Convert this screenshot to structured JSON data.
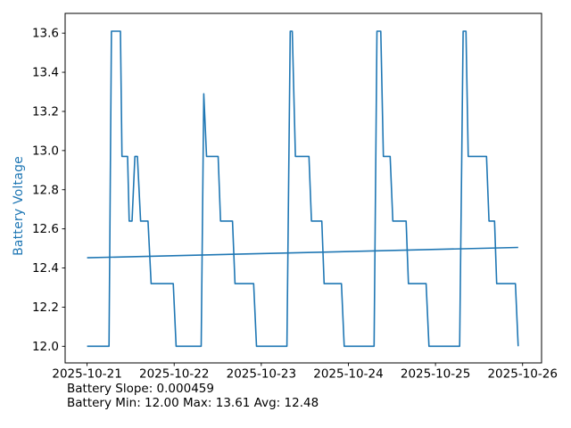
{
  "chart_data": {
    "type": "line",
    "title": "",
    "xlabel": "",
    "ylabel": "Battery Voltage",
    "x_unit": "days since 2025-10-21 00:00",
    "x_tick_values": [
      0,
      1,
      2,
      3,
      4,
      5
    ],
    "x_tick_labels": [
      "2025-10-21",
      "2025-10-22",
      "2025-10-23",
      "2025-10-24",
      "2025-10-25",
      "2025-10-26"
    ],
    "y_tick_values": [
      12.0,
      12.2,
      12.4,
      12.6,
      12.8,
      13.0,
      13.2,
      13.4,
      13.6
    ],
    "y_tick_labels": [
      "12.0",
      "12.2",
      "12.4",
      "12.6",
      "12.8",
      "13.0",
      "13.2",
      "13.4",
      "13.6"
    ],
    "xlim": [
      -0.252,
      5.218
    ],
    "ylim": [
      11.915,
      13.701
    ],
    "grid": false,
    "legend": "none",
    "line_color": "#1f77b4",
    "axis_color": "#000000",
    "ylabel_color": "#1f77b4",
    "series": [
      {
        "name": "battery_voltage",
        "points": [
          [
            0.0,
            12.0
          ],
          [
            0.252,
            12.0
          ],
          [
            0.28,
            13.61
          ],
          [
            0.383,
            13.61
          ],
          [
            0.4,
            12.97
          ],
          [
            0.465,
            12.97
          ],
          [
            0.483,
            12.64
          ],
          [
            0.516,
            12.64
          ],
          [
            0.549,
            12.97
          ],
          [
            0.578,
            12.97
          ],
          [
            0.615,
            12.64
          ],
          [
            0.7,
            12.64
          ],
          [
            0.735,
            12.32
          ],
          [
            0.99,
            12.32
          ],
          [
            1.022,
            12.0
          ],
          [
            1.31,
            12.0
          ],
          [
            1.34,
            13.29
          ],
          [
            1.372,
            12.97
          ],
          [
            1.505,
            12.97
          ],
          [
            1.532,
            12.64
          ],
          [
            1.67,
            12.64
          ],
          [
            1.698,
            12.32
          ],
          [
            1.912,
            12.32
          ],
          [
            1.945,
            12.0
          ],
          [
            2.295,
            12.0
          ],
          [
            2.332,
            13.61
          ],
          [
            2.356,
            13.61
          ],
          [
            2.392,
            12.97
          ],
          [
            2.548,
            12.97
          ],
          [
            2.576,
            12.64
          ],
          [
            2.695,
            12.64
          ],
          [
            2.722,
            12.32
          ],
          [
            2.92,
            12.32
          ],
          [
            2.952,
            12.0
          ],
          [
            3.295,
            12.0
          ],
          [
            3.328,
            13.61
          ],
          [
            3.372,
            13.61
          ],
          [
            3.402,
            12.97
          ],
          [
            3.48,
            12.97
          ],
          [
            3.51,
            12.64
          ],
          [
            3.663,
            12.64
          ],
          [
            3.69,
            12.32
          ],
          [
            3.893,
            12.32
          ],
          [
            3.925,
            12.0
          ],
          [
            4.278,
            12.0
          ],
          [
            4.318,
            13.61
          ],
          [
            4.35,
            13.61
          ],
          [
            4.376,
            12.97
          ],
          [
            4.586,
            12.97
          ],
          [
            4.615,
            12.64
          ],
          [
            4.678,
            12.64
          ],
          [
            4.703,
            12.32
          ],
          [
            4.918,
            12.32
          ],
          [
            4.95,
            12.0
          ]
        ]
      },
      {
        "name": "trend_line",
        "points": [
          [
            0.0,
            12.452
          ],
          [
            4.95,
            12.505
          ]
        ]
      }
    ],
    "annotations": [
      "Battery Slope: 0.000459",
      "Battery Min: 12.00 Max: 13.61 Avg: 12.48"
    ]
  }
}
